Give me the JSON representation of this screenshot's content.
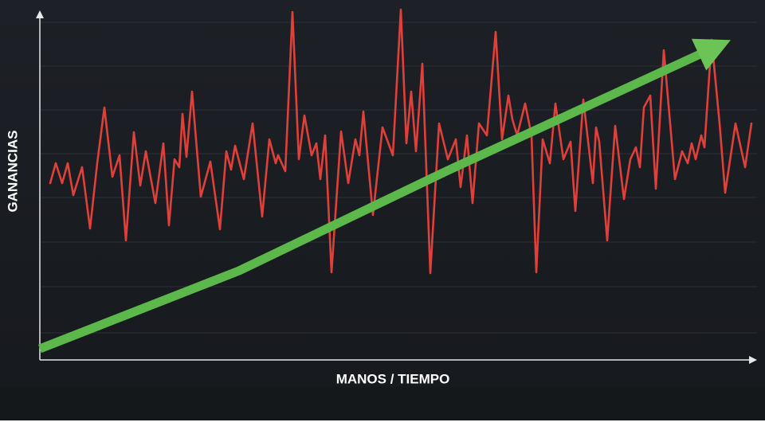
{
  "chart_data": {
    "type": "line",
    "x_label": "MANOS / TIEMPO",
    "y_label": "GANANCIAS",
    "xlim": [
      0,
      900
    ],
    "ylim": [
      0,
      445
    ],
    "grid": true,
    "series": [
      {
        "color": "#e0403a",
        "x": [
          13,
          20,
          28,
          35,
          42,
          53,
          63,
          72,
          81,
          91,
          100,
          108,
          118,
          126,
          133,
          145,
          155,
          162,
          169,
          175,
          179,
          184,
          191,
          202,
          214,
          226,
          234,
          240,
          245,
          256,
          267,
          279,
          288,
          296,
          299,
          308,
          317,
          325,
          332,
          341,
          347,
          352,
          358,
          366,
          378,
          387,
          396,
          401,
          406,
          418,
          430,
          443,
          453,
          460,
          466,
          472,
          480,
          490,
          501,
          512,
          522,
          528,
          536,
          543,
          551,
          561,
          572,
          580,
          588,
          593,
          599,
          609,
          617,
          623,
          631,
          640,
          647,
          657,
          666,
          672,
          682,
          694,
          698,
          702,
          712,
          722,
          733,
          741,
          748,
          753,
          758,
          766,
          773,
          783,
          797,
          806,
          813,
          818,
          823,
          830,
          834,
          843,
          853,
          860,
          873,
          885,
          893
        ],
        "values": [
          222,
          247,
          222,
          247,
          207,
          242,
          165,
          247,
          317,
          230,
          257,
          150,
          286,
          219,
          262,
          197,
          272,
          169,
          252,
          242,
          309,
          255,
          337,
          205,
          249,
          164,
          262,
          239,
          269,
          227,
          297,
          180,
          277,
          247,
          257,
          237,
          437,
          252,
          307,
          257,
          272,
          227,
          282,
          110,
          287,
          222,
          277,
          257,
          312,
          182,
          292,
          257,
          440,
          272,
          337,
          262,
          372,
          109,
          297,
          252,
          277,
          217,
          282,
          197,
          297,
          282,
          412,
          277,
          332,
          302,
          282,
          322,
          282,
          110,
          277,
          247,
          322,
          252,
          274,
          187,
          327,
          222,
          292,
          274,
          150,
          294,
          202,
          252,
          267,
          242,
          317,
          332,
          215,
          389,
          227,
          262,
          247,
          272,
          252,
          282,
          267,
          402,
          297,
          210,
          297,
          242,
          297
        ]
      },
      {
        "color": "#5cb84a",
        "style": "arrow",
        "x": [
          0,
          250,
          510,
          835
        ],
        "values": [
          14,
          112,
          237,
          387
        ]
      }
    ]
  }
}
